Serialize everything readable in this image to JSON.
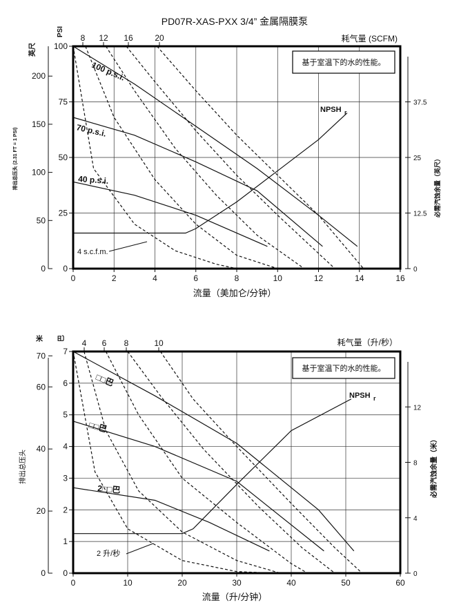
{
  "chart_data": [
    {
      "type": "line",
      "title": "PD07R-XAS-PXX 3/4” 金属隔膜泵",
      "xlabel": "流量（美加仑/分钟）",
      "xlim": [
        0,
        16
      ],
      "x_ticks": [
        "0",
        "2",
        "4",
        "6",
        "8",
        "10",
        "12",
        "14",
        "16"
      ],
      "left_outer_label": "英尺",
      "left_outer_ticks": [
        "0",
        "50",
        "100",
        "150",
        "200"
      ],
      "left_rotated_label": "排出总压头 (2.31 FT = 1 PSI)",
      "y_unit_label": "PSI",
      "ylim": [
        0,
        100
      ],
      "y_ticks": [
        "0",
        "25",
        "50",
        "75",
        "100"
      ],
      "right_label": "必需汽蚀余量（英尺）",
      "right_ticks": [
        "0",
        "12.5",
        "25",
        "37.5"
      ],
      "top_label": "耗气量 (SCFM)",
      "top_ticks": [
        "8",
        "12",
        "16",
        "20"
      ],
      "note": "基于室温下的水的性能。",
      "curve_labels": [
        "100 p.s.i.",
        "70 p.s.i.",
        "40 p.s.i.",
        "4 s.c.f.m."
      ],
      "npsh_label": "NPSH",
      "npsh_sub": "r",
      "series": [
        {
          "name": "100 p.s.i.",
          "style": "solid",
          "x": [
            0,
            3,
            6,
            9,
            12,
            13.9
          ],
          "y": [
            100,
            83,
            64,
            45,
            24,
            10
          ]
        },
        {
          "name": "70 p.s.i.",
          "style": "solid",
          "x": [
            0,
            3,
            6,
            9,
            12.2
          ],
          "y": [
            68,
            60,
            48,
            35,
            10
          ]
        },
        {
          "name": "40 p.s.i.",
          "style": "solid",
          "x": [
            0,
            3,
            6,
            9.5
          ],
          "y": [
            39,
            33,
            24,
            10
          ]
        },
        {
          "name": "NPSHr",
          "style": "solid",
          "x": [
            0,
            5.5,
            6,
            8,
            10,
            12,
            13.4
          ],
          "y": [
            16,
            16,
            18,
            30,
            44,
            58,
            70
          ]
        },
        {
          "name": "4 s.c.f.m.",
          "style": "dashed",
          "x": [
            0,
            1,
            3,
            5,
            7,
            8
          ],
          "y": [
            100,
            45,
            20,
            8,
            2,
            0
          ]
        },
        {
          "name": "8 SCFM",
          "style": "dashed",
          "x": [
            0.6,
            2,
            4,
            6,
            8,
            10
          ],
          "y": [
            100,
            68,
            40,
            20,
            6,
            0
          ]
        },
        {
          "name": "12 SCFM",
          "style": "dashed",
          "x": [
            1.6,
            3,
            5,
            7,
            9,
            11.3
          ],
          "y": [
            100,
            80,
            54,
            33,
            15,
            0
          ]
        },
        {
          "name": "16 SCFM",
          "style": "dashed",
          "x": [
            2.6,
            4,
            6,
            8,
            10,
            12.8
          ],
          "y": [
            100,
            84,
            62,
            42,
            24,
            0
          ]
        },
        {
          "name": "20 SCFM",
          "style": "dashed",
          "x": [
            4.1,
            6,
            8,
            10,
            12,
            14.2
          ],
          "y": [
            100,
            80,
            60,
            42,
            24,
            0
          ]
        }
      ]
    },
    {
      "type": "line",
      "xlabel": "流量（升/分钟）",
      "xlim": [
        0,
        60
      ],
      "x_ticks": [
        "0",
        "10",
        "20",
        "30",
        "40",
        "50",
        "60"
      ],
      "left_outer_label": "米",
      "left_outer_ticks": [
        "0",
        "20",
        "40",
        "60",
        "70"
      ],
      "left_rotated_label": "排出总压头",
      "y_unit_label": "巴",
      "ylim": [
        0,
        7
      ],
      "y_ticks": [
        "0",
        "1",
        "2",
        "3",
        "4",
        "5",
        "6",
        "7"
      ],
      "right_label": "必需汽蚀余量（米）",
      "right_ticks": [
        "0",
        "4",
        "8",
        "12"
      ],
      "top_label": "耗气量（升/秒）",
      "top_ticks": [
        "4",
        "6",
        "8",
        "10"
      ],
      "note": "基于室温下的水的性能。",
      "curve_labels": [
        "□□巴",
        "□□巴",
        "2□□巴",
        "2 升/秒"
      ],
      "npsh_label": "NPSH",
      "npsh_sub": "r",
      "series": [
        {
          "name": "□□巴 (top)",
          "style": "solid",
          "x": [
            0,
            15,
            30,
            45,
            51.5
          ],
          "y": [
            7,
            5.6,
            4.1,
            2.0,
            0.7
          ]
        },
        {
          "name": "□□巴 (mid)",
          "style": "solid",
          "x": [
            0,
            15,
            30,
            46
          ],
          "y": [
            4.8,
            4.0,
            2.9,
            0.7
          ]
        },
        {
          "name": "2□□巴",
          "style": "solid",
          "x": [
            0,
            15,
            25,
            36
          ],
          "y": [
            2.7,
            2.3,
            1.6,
            0.7
          ]
        },
        {
          "name": "NPSHr",
          "style": "solid",
          "x": [
            0,
            20,
            22,
            30,
            40,
            51
          ],
          "y": [
            1.25,
            1.25,
            1.4,
            2.8,
            4.5,
            5.5
          ]
        },
        {
          "name": "2 升/秒",
          "style": "dashed",
          "x": [
            0,
            4,
            10,
            20,
            30,
            37
          ],
          "y": [
            7,
            3.2,
            1.4,
            0.4,
            0.05,
            0
          ]
        },
        {
          "name": "4 升/秒",
          "style": "dashed",
          "x": [
            2,
            6,
            12,
            20,
            30,
            38
          ],
          "y": [
            7,
            4.5,
            2.6,
            1.3,
            0.4,
            0
          ]
        },
        {
          "name": "6 升/秒",
          "style": "dashed",
          "x": [
            6,
            12,
            20,
            30,
            40,
            43
          ],
          "y": [
            7,
            5.0,
            3.0,
            1.6,
            0.3,
            0
          ]
        },
        {
          "name": "8 升/秒",
          "style": "dashed",
          "x": [
            10,
            16,
            24,
            34,
            42,
            48
          ],
          "y": [
            7,
            5.6,
            3.9,
            2.1,
            0.8,
            0
          ]
        },
        {
          "name": "10 升/秒",
          "style": "dashed",
          "x": [
            16,
            22,
            30,
            40,
            48,
            53
          ],
          "y": [
            7,
            5.5,
            4.0,
            2.2,
            0.8,
            0
          ]
        }
      ]
    }
  ]
}
